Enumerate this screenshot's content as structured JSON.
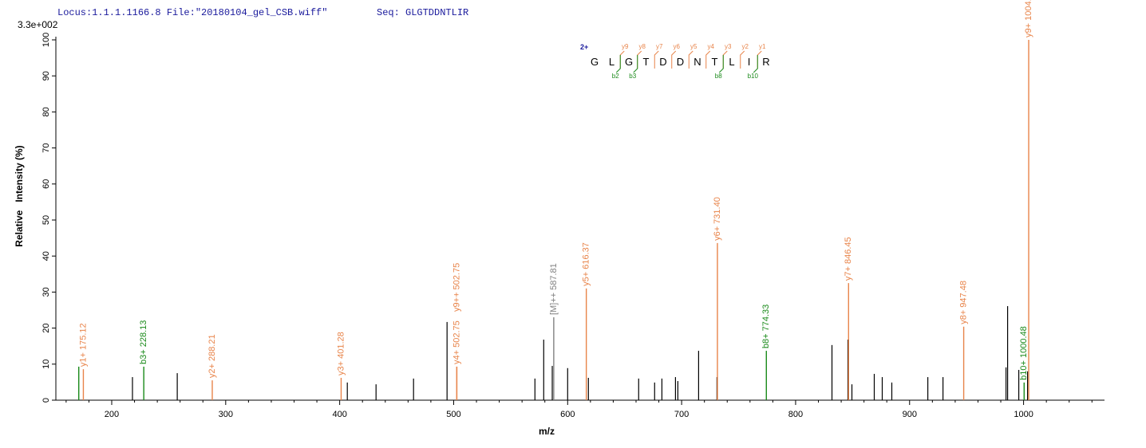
{
  "chart_data": {
    "type": "spectrum",
    "locus": "Locus:1.1.1.1166.8 File:\"20180104_gel_CSB.wiff\"",
    "seq": "Seq: GLGTDDNTLIR",
    "scale_label": "3.3e+002",
    "x_label": "m/z",
    "y_label": "Relative   Intensity (%)",
    "xlim": [
      151,
      1071
    ],
    "ylim": [
      0,
      100
    ],
    "xticks": [
      200,
      300,
      400,
      500,
      600,
      700,
      800,
      900,
      1000
    ],
    "xminorticks": [
      160,
      180,
      220,
      240,
      260,
      280,
      320,
      340,
      360,
      380,
      420,
      440,
      460,
      480,
      520,
      540,
      560,
      580,
      620,
      640,
      660,
      680,
      720,
      740,
      760,
      780,
      820,
      840,
      860,
      880,
      920,
      940,
      960,
      980,
      1020,
      1040,
      1060
    ],
    "yticks": [
      0,
      10,
      20,
      30,
      40,
      50,
      60,
      70,
      80,
      90,
      100
    ],
    "peaks": {
      "color": "#000000",
      "x": [
        218.2,
        257.5,
        406.7,
        431.9,
        464.8,
        494.2,
        571.3,
        579.0,
        586.5,
        600.0,
        618.2,
        662.3,
        676.3,
        682.7,
        694.6,
        696.7,
        714.9,
        731.0,
        831.9,
        845.9,
        849.4,
        869.0,
        876.0,
        884.4,
        916.0,
        929.3,
        984.6,
        986.0,
        995.8,
        1003.5
      ],
      "values": [
        6.4,
        7.5,
        4.9,
        4.4,
        6.0,
        21.7,
        6.0,
        16.8,
        9.5,
        8.9,
        6.2,
        6.0,
        4.9,
        6.0,
        6.4,
        5.3,
        13.7,
        6.4,
        15.3,
        16.8,
        4.4,
        7.3,
        6.4,
        4.9,
        6.4,
        6.4,
        9.1,
        26.1,
        8.4,
        8.0
      ]
    },
    "annotated": {
      "x": [
        171.1,
        175.12,
        228.13,
        288.21,
        401.28,
        502.75,
        502.75,
        587.81,
        616.37,
        731.4,
        774.33,
        846.45,
        947.48,
        1000.48,
        1004.5
      ],
      "values": [
        9.3,
        8.6,
        9.3,
        5.5,
        6.2,
        9.3,
        9.3,
        23.0,
        31.0,
        43.6,
        13.7,
        32.5,
        20.4,
        4.9,
        100
      ],
      "labels": [
        null,
        "y1+ 175.12",
        "b3+ 228.13",
        "y2+ 288.21",
        "y3+ 401.28",
        "y4+ 502.75",
        "y9++ 502.75",
        "[M]++ 587.81",
        "y5+ 616.37",
        "y6+ 731.40",
        "b8+ 774.33",
        "y7+ 846.45",
        "y8+ 947.48",
        "b10+ 1000.48",
        "y9+ 1004.50"
      ],
      "colors": [
        "#1a8a1a",
        "#e8844a",
        "#1a8a1a",
        "#e8844a",
        "#e8844a",
        "#e8844a",
        "#e8844a",
        "#808080",
        "#e8844a",
        "#e8844a",
        "#1a8a1a",
        "#e8844a",
        "#e8844a",
        "#1a8a1a",
        "#e8844a"
      ]
    },
    "sequence_map": {
      "charge": "2+",
      "residues": [
        "G",
        "L",
        "G",
        "T",
        "D",
        "D",
        "N",
        "T",
        "L",
        "I",
        "R"
      ],
      "y_ions": [
        "y9",
        "y8",
        "y7",
        "y6",
        "y5",
        "y4",
        "y3",
        "y2",
        "y1"
      ],
      "b_ions": [
        "b2",
        "b3",
        "b8",
        "b10"
      ]
    }
  }
}
